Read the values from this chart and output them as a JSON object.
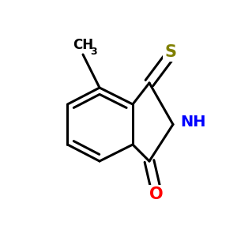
{
  "bg_color": "#ffffff",
  "bond_color": "#000000",
  "S_color": "#808000",
  "N_color": "#0000ff",
  "O_color": "#ff0000",
  "line_width": 2.2,
  "figsize": [
    3.0,
    3.0
  ],
  "dpi": 100,
  "xlim": [
    0.0,
    1.0
  ],
  "ylim": [
    0.05,
    1.05
  ]
}
